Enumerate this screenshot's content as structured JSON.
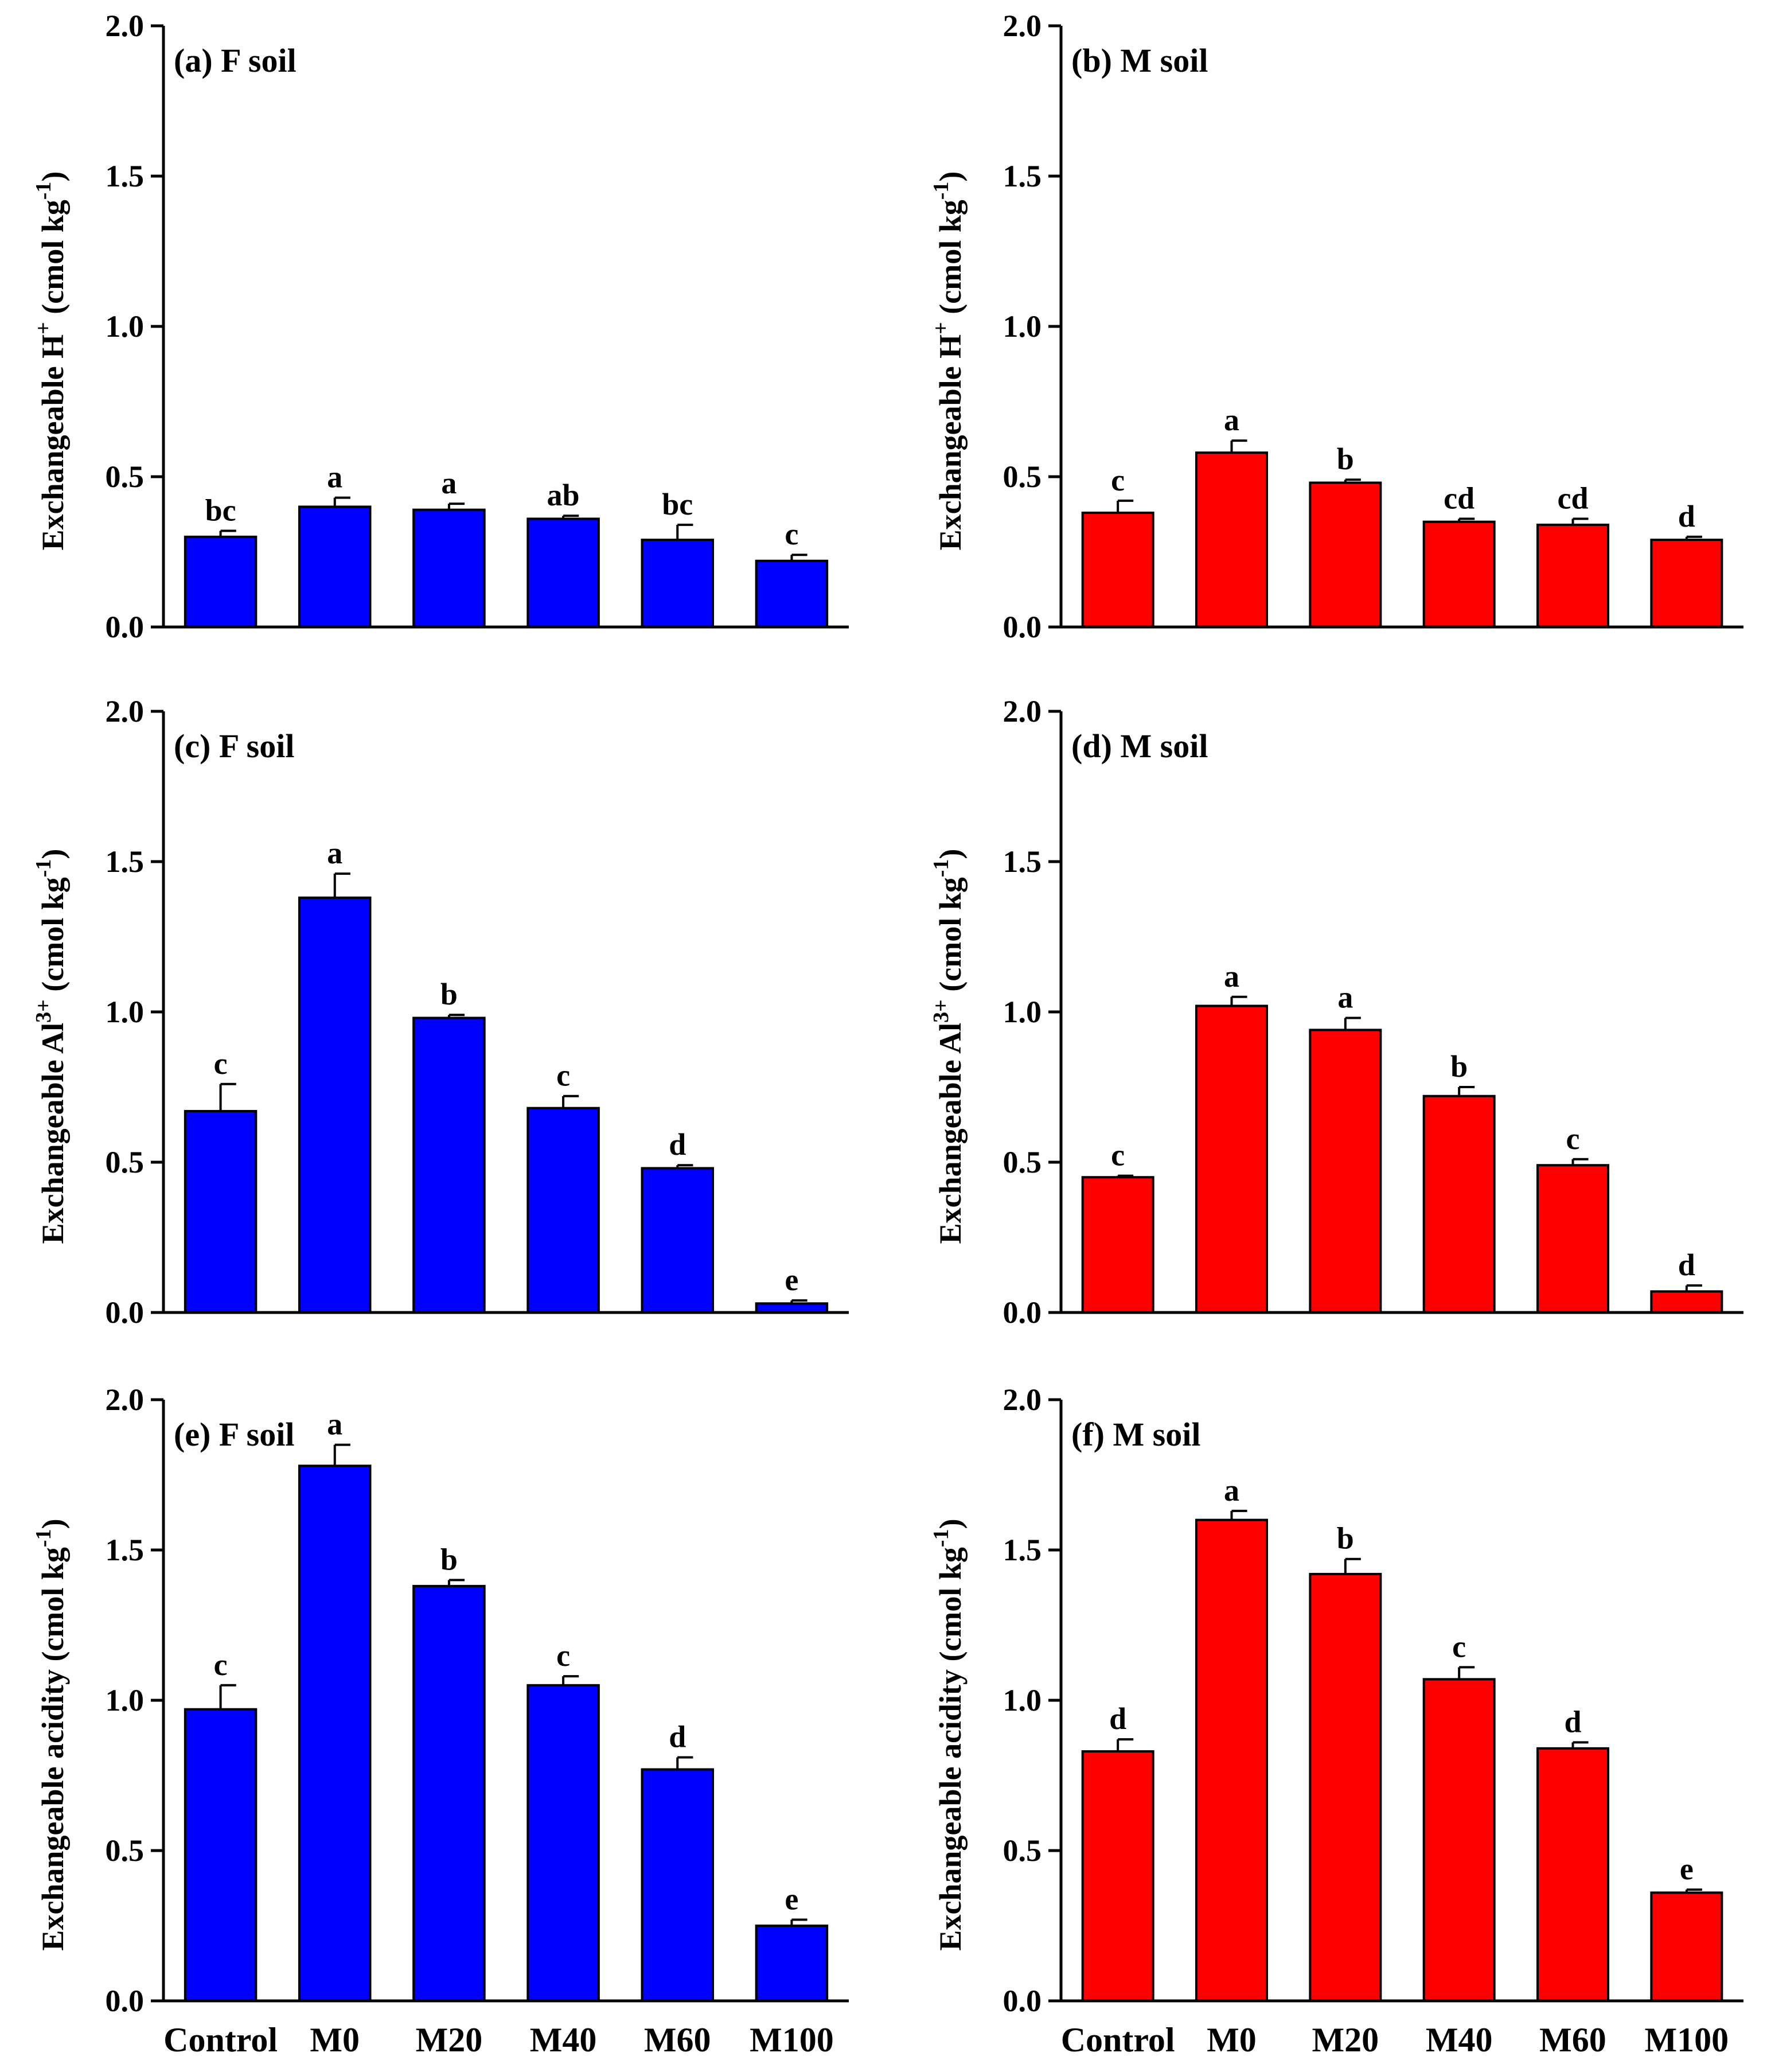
{
  "chart_data": [
    {
      "type": "bar",
      "title": "(a) F soil",
      "ylabel": {
        "main": "Exchangeable H",
        "sup": "+",
        "units": " (cmol kg",
        "units_sup": "-1",
        "close": ")"
      },
      "ylim": [
        0,
        2.0
      ],
      "yticks": [
        "0.0",
        "0.5",
        "1.0",
        "1.5",
        "2.0"
      ],
      "categories": [
        "Control",
        "M0",
        "M20",
        "M40",
        "M60",
        "M100"
      ],
      "values": [
        0.3,
        0.4,
        0.39,
        0.36,
        0.29,
        0.22
      ],
      "errors": [
        0.02,
        0.03,
        0.02,
        0.01,
        0.05,
        0.02
      ],
      "letters": [
        "bc",
        "a",
        "a",
        "ab",
        "bc",
        "c"
      ],
      "color": "#0000ff"
    },
    {
      "type": "bar",
      "title": "(b) M soil",
      "ylabel": {
        "main": "Exchangeable H",
        "sup": "+",
        "units": " (cmol kg",
        "units_sup": "-1",
        "close": ")"
      },
      "ylim": [
        0,
        2.0
      ],
      "yticks": [
        "0.0",
        "0.5",
        "1.0",
        "1.5",
        "2.0"
      ],
      "categories": [
        "Control",
        "M0",
        "M20",
        "M40",
        "M60",
        "M100"
      ],
      "values": [
        0.38,
        0.58,
        0.48,
        0.35,
        0.34,
        0.29
      ],
      "errors": [
        0.04,
        0.04,
        0.01,
        0.01,
        0.02,
        0.01
      ],
      "letters": [
        "c",
        "a",
        "b",
        "cd",
        "cd",
        "d"
      ],
      "color": "#ff0000"
    },
    {
      "type": "bar",
      "title": "(c) F soil",
      "ylabel": {
        "main": "Exchangeable Al",
        "sup": "3+",
        "units": " (cmol kg",
        "units_sup": "-1",
        "close": ")"
      },
      "ylim": [
        0,
        2.0
      ],
      "yticks": [
        "0.0",
        "0.5",
        "1.0",
        "1.5",
        "2.0"
      ],
      "categories": [
        "Control",
        "M0",
        "M20",
        "M40",
        "M60",
        "M100"
      ],
      "values": [
        0.67,
        1.38,
        0.98,
        0.68,
        0.48,
        0.03
      ],
      "errors": [
        0.09,
        0.08,
        0.01,
        0.04,
        0.01,
        0.01
      ],
      "letters": [
        "c",
        "a",
        "b",
        "c",
        "d",
        "e"
      ],
      "color": "#0000ff"
    },
    {
      "type": "bar",
      "title": "(d) M soil",
      "ylabel": {
        "main": "Exchangeable Al",
        "sup": "3+",
        "units": " (cmol kg",
        "units_sup": "-1",
        "close": ")"
      },
      "ylim": [
        0,
        2.0
      ],
      "yticks": [
        "0.0",
        "0.5",
        "1.0",
        "1.5",
        "2.0"
      ],
      "categories": [
        "Control",
        "M0",
        "M20",
        "M40",
        "M60",
        "M100"
      ],
      "values": [
        0.45,
        1.02,
        0.94,
        0.72,
        0.49,
        0.07
      ],
      "errors": [
        0.005,
        0.03,
        0.04,
        0.03,
        0.02,
        0.02
      ],
      "letters": [
        "c",
        "a",
        "a",
        "b",
        "c",
        "d"
      ],
      "color": "#ff0000"
    },
    {
      "type": "bar",
      "title": "(e) F soil",
      "ylabel": {
        "main": "Exchangeable acidity",
        "sup": "",
        "units": " (cmol kg",
        "units_sup": "-1",
        "close": ")"
      },
      "ylim": [
        0,
        2.0
      ],
      "yticks": [
        "0.0",
        "0.5",
        "1.0",
        "1.5",
        "2.0"
      ],
      "categories": [
        "Control",
        "M0",
        "M20",
        "M40",
        "M60",
        "M100"
      ],
      "values": [
        0.97,
        1.78,
        1.38,
        1.05,
        0.77,
        0.25
      ],
      "errors": [
        0.08,
        0.07,
        0.02,
        0.03,
        0.04,
        0.02
      ],
      "letters": [
        "c",
        "a",
        "b",
        "c",
        "d",
        "e"
      ],
      "color": "#0000ff"
    },
    {
      "type": "bar",
      "title": "(f) M soil",
      "ylabel": {
        "main": "Exchangeable acidity",
        "sup": "",
        "units": " (cmol kg",
        "units_sup": "-1",
        "close": ")"
      },
      "ylim": [
        0,
        2.0
      ],
      "yticks": [
        "0.0",
        "0.5",
        "1.0",
        "1.5",
        "2.0"
      ],
      "categories": [
        "Control",
        "M0",
        "M20",
        "M40",
        "M60",
        "M100"
      ],
      "values": [
        0.83,
        1.6,
        1.42,
        1.07,
        0.84,
        0.36
      ],
      "errors": [
        0.04,
        0.03,
        0.05,
        0.04,
        0.02,
        0.01
      ],
      "letters": [
        "d",
        "a",
        "b",
        "c",
        "d",
        "e"
      ],
      "color": "#ff0000"
    }
  ]
}
